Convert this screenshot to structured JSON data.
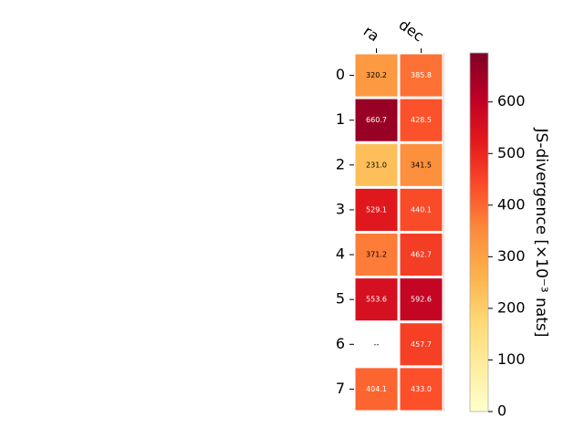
{
  "chart_data": {
    "type": "heatmap",
    "columns": [
      "ra",
      "dec"
    ],
    "rows": [
      "0",
      "1",
      "2",
      "3",
      "4",
      "5",
      "6",
      "7"
    ],
    "values": [
      [
        320.2,
        385.8
      ],
      [
        660.7,
        428.5
      ],
      [
        231.0,
        341.5
      ],
      [
        529.1,
        440.1
      ],
      [
        371.2,
        462.7
      ],
      [
        553.6,
        592.6
      ],
      [
        null,
        457.7
      ],
      [
        404.1,
        433.0
      ]
    ],
    "missing_label": "--",
    "colorbar": {
      "label": "JS-divergence [×10⁻³ nats]",
      "ticks": [
        "0",
        "100",
        "200",
        "300",
        "400",
        "500",
        "600"
      ],
      "range": [
        0,
        695
      ],
      "colormap": "YlOrRd",
      "stops": [
        "#ffffcc",
        "#ffeda0",
        "#fed976",
        "#feb24c",
        "#fd8d3c",
        "#fc4e2a",
        "#e31a1c",
        "#bd0026",
        "#800026"
      ]
    }
  }
}
